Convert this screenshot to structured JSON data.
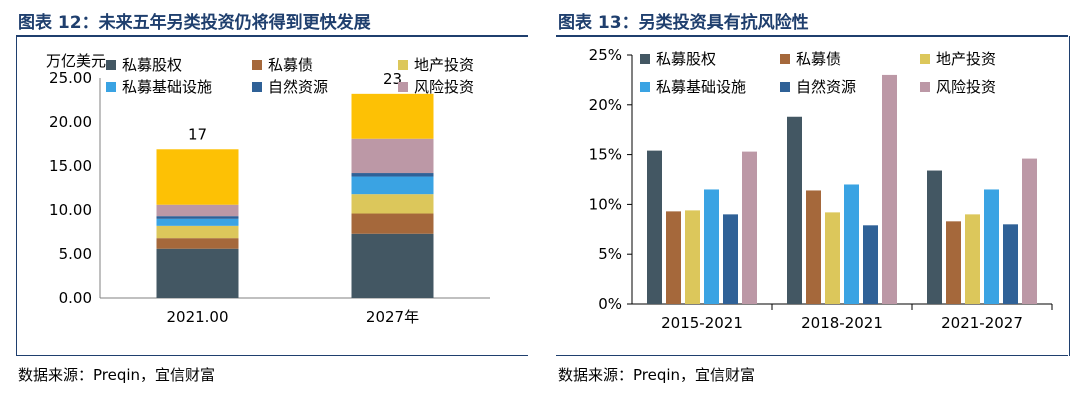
{
  "left_panel": {
    "title": "图表 12：未来五年另类投资仍将得到更快发展",
    "source": "数据来源：Preqin，宜信财富"
  },
  "right_panel": {
    "title": "图表 13：另类投资具有抗风险性",
    "source": "数据来源：Preqin，宜信财富"
  },
  "chart_data": [
    {
      "type": "bar",
      "stacked": true,
      "title": "",
      "ylabel": "万亿美元",
      "xlabel": "",
      "ylim": [
        0,
        25
      ],
      "yticks": [
        "0.00",
        "5.00",
        "10.00",
        "15.00",
        "20.00",
        "25.00"
      ],
      "categories": [
        "2021.00",
        "2027年"
      ],
      "totals": [
        "17",
        "23"
      ],
      "legend_position": "top",
      "series": [
        {
          "name": "私募股权",
          "color": "#435763",
          "values": [
            5.6,
            7.3
          ]
        },
        {
          "name": "私募债",
          "color": "#a5683b",
          "values": [
            1.2,
            2.3
          ]
        },
        {
          "name": "地产投资",
          "color": "#dcc75b",
          "values": [
            1.4,
            2.2
          ]
        },
        {
          "name": "私募基础设施",
          "color": "#3aa3e3",
          "values": [
            0.8,
            2.0
          ]
        },
        {
          "name": "自然资源",
          "color": "#2f6197",
          "values": [
            0.3,
            0.4
          ]
        },
        {
          "name": "风险投资",
          "color": "#bc98a6",
          "values": [
            1.3,
            3.9
          ]
        },
        {
          "name": "",
          "color": "#fdc105",
          "values": [
            6.3,
            5.1
          ]
        }
      ]
    },
    {
      "type": "bar",
      "stacked": false,
      "title": "",
      "ylabel": "",
      "xlabel": "",
      "ylim": [
        0,
        25
      ],
      "yticks": [
        "0%",
        "5%",
        "10%",
        "15%",
        "20%",
        "25%"
      ],
      "categories": [
        "2015-2021",
        "2018-2021",
        "2021-2027"
      ],
      "legend_position": "top",
      "series": [
        {
          "name": "私募股权",
          "color": "#435763",
          "values": [
            15.4,
            18.8,
            13.4
          ]
        },
        {
          "name": "私募债",
          "color": "#a5683b",
          "values": [
            9.3,
            11.4,
            8.3
          ]
        },
        {
          "name": "地产投资",
          "color": "#dcc75b",
          "values": [
            9.4,
            9.2,
            9.0
          ]
        },
        {
          "name": "私募基础设施",
          "color": "#3aa3e3",
          "values": [
            11.5,
            12.0,
            11.5
          ]
        },
        {
          "name": "自然资源",
          "color": "#2f6197",
          "values": [
            9.0,
            7.9,
            8.0
          ]
        },
        {
          "name": "风险投资",
          "color": "#bc98a6",
          "values": [
            15.3,
            23.0,
            14.6
          ]
        }
      ]
    }
  ]
}
